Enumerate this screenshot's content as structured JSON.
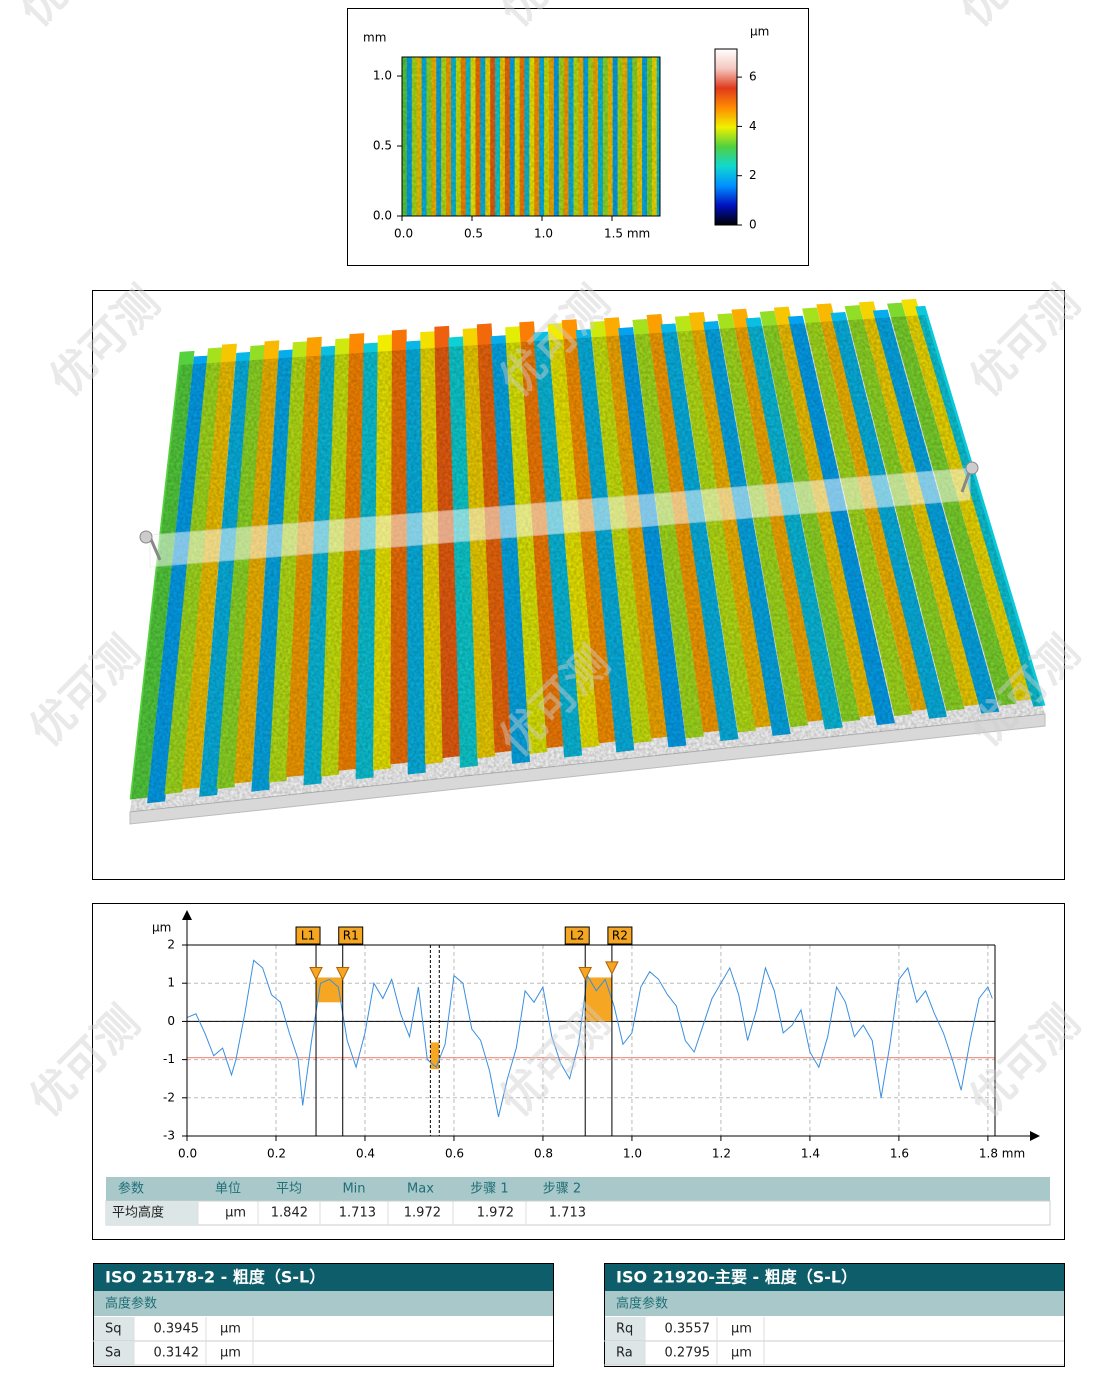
{
  "watermark": "优可测",
  "chart_data": [
    {
      "type": "heatmap",
      "y_label": "mm",
      "colorbar_label": "μm",
      "x": [
        0.0175,
        0.0525,
        0.0875,
        0.1225,
        0.1575,
        0.1925,
        0.2275,
        0.2625,
        0.2975,
        0.3325,
        0.3675,
        0.4025,
        0.4375,
        0.4725,
        0.5075,
        0.5425,
        0.5775,
        0.6125,
        0.6475,
        0.6825,
        0.7175,
        0.7525,
        0.7875,
        0.8225,
        0.8575,
        0.8925,
        0.9275,
        0.9625,
        0.9975,
        1.0325,
        1.0675,
        1.1025,
        1.1375,
        1.1725,
        1.2075,
        1.2425,
        1.2775,
        1.3125,
        1.3475,
        1.3825,
        1.4175,
        1.4525,
        1.4875,
        1.5225,
        1.5575,
        1.5925,
        1.6275,
        1.6625,
        1.6975,
        1.7325,
        1.7675,
        1.8025,
        1.8375
      ],
      "values": [
        3.2,
        1.8,
        3.6,
        4.3,
        2.0,
        3.5,
        4.4,
        1.9,
        3.7,
        4.6,
        2.1,
        3.8,
        4.8,
        2.2,
        4.0,
        5.0,
        2.0,
        4.1,
        5.2,
        2.3,
        4.2,
        5.1,
        1.9,
        3.9,
        4.9,
        2.1,
        4.0,
        4.7,
        2.0,
        3.8,
        4.5,
        1.8,
        3.6,
        4.6,
        2.0,
        3.7,
        4.4,
        1.9,
        3.6,
        4.5,
        2.1,
        3.5,
        4.3,
        1.8,
        3.6,
        4.4,
        2.0,
        3.5,
        4.2,
        1.9,
        3.4,
        4.1,
        2.2
      ],
      "xlim": [
        0,
        1.843
      ],
      "ylim": [
        0,
        1.136
      ],
      "zlim": [
        0,
        7.14
      ],
      "xticks": [
        {
          "value": 0,
          "label": "0.0"
        },
        0.5,
        {
          "value": 1,
          "label": "1.0"
        },
        {
          "value": 1.5,
          "label": "1.5 mm"
        }
      ],
      "yticks": [
        {
          "value": 0,
          "label": "0.0"
        },
        0.5,
        {
          "value": 1,
          "label": "1.0"
        }
      ],
      "zticks": [
        0,
        2,
        4,
        6
      ],
      "colors": [
        "#000000",
        "#0010c0",
        "#0090ff",
        "#10d8d0",
        "#50d040",
        "#f0f000",
        "#ff8c00",
        "#e03a1c",
        "#f4c8c0",
        "#ffffff"
      ]
    },
    {
      "type": "line",
      "y_label": "μm",
      "color": "#3a8fe0",
      "x": [
        0,
        0.02,
        0.04,
        0.06,
        0.08,
        0.1,
        0.11,
        0.13,
        0.15,
        0.17,
        0.19,
        0.21,
        0.23,
        0.25,
        0.26,
        0.28,
        0.3,
        0.32,
        0.34,
        0.36,
        0.38,
        0.4,
        0.42,
        0.44,
        0.46,
        0.48,
        0.5,
        0.52,
        0.54,
        0.56,
        0.58,
        0.6,
        0.62,
        0.64,
        0.66,
        0.68,
        0.7,
        0.72,
        0.74,
        0.76,
        0.78,
        0.8,
        0.82,
        0.84,
        0.86,
        0.88,
        0.9,
        0.92,
        0.94,
        0.96,
        0.98,
        1.0,
        1.02,
        1.04,
        1.06,
        1.08,
        1.1,
        1.12,
        1.14,
        1.16,
        1.18,
        1.2,
        1.22,
        1.24,
        1.26,
        1.28,
        1.3,
        1.32,
        1.34,
        1.36,
        1.38,
        1.4,
        1.42,
        1.44,
        1.46,
        1.48,
        1.5,
        1.52,
        1.54,
        1.56,
        1.58,
        1.6,
        1.62,
        1.64,
        1.66,
        1.68,
        1.7,
        1.72,
        1.74,
        1.76,
        1.78,
        1.8,
        1.81
      ],
      "values": [
        0.1,
        0.2,
        -0.3,
        -0.9,
        -0.7,
        -1.4,
        -1.0,
        0.2,
        1.6,
        1.4,
        0.7,
        0.5,
        -0.3,
        -1.0,
        -2.2,
        -0.5,
        1.0,
        1.1,
        0.9,
        -0.5,
        -1.2,
        -0.3,
        1.0,
        0.6,
        1.1,
        0.2,
        -0.4,
        0.9,
        -1.0,
        -1.2,
        -0.6,
        1.2,
        1.0,
        -0.2,
        -0.5,
        -1.3,
        -2.5,
        -1.5,
        -0.7,
        0.8,
        0.5,
        0.9,
        -0.4,
        -1.1,
        -1.5,
        -0.6,
        1.2,
        0.8,
        1.1,
        0.4,
        -0.6,
        -0.3,
        0.9,
        1.3,
        1.1,
        0.7,
        0.4,
        -0.5,
        -0.8,
        -0.1,
        0.6,
        1.0,
        1.4,
        0.7,
        -0.5,
        0.3,
        1.4,
        0.8,
        -0.3,
        -0.1,
        0.3,
        -0.8,
        -1.2,
        -0.4,
        0.9,
        0.5,
        -0.4,
        -0.1,
        -0.5,
        -2.0,
        -0.6,
        1.1,
        1.4,
        0.5,
        0.8,
        0.2,
        -0.3,
        -1.0,
        -1.8,
        -0.5,
        0.6,
        0.9,
        0.6
      ],
      "xlim": [
        0,
        1.816
      ],
      "ylim": [
        -3,
        2
      ],
      "xticks": [
        {
          "value": 0,
          "label": "0.0"
        },
        0.2,
        0.4,
        0.6,
        0.8,
        {
          "value": 1,
          "label": "1.0"
        },
        1.2,
        1.4,
        1.6,
        {
          "value": 1.8,
          "label": "1.8 mm"
        }
      ],
      "yticks": [
        -3,
        -2,
        -1,
        0,
        1,
        2
      ],
      "grid": true,
      "reference_line": {
        "value": -0.95,
        "color": "#f08a7a"
      },
      "markers": [
        {
          "label": "L1",
          "x": 0.29,
          "y": 1.2
        },
        {
          "label": "R1",
          "x": 0.35,
          "y": 1.2
        },
        {
          "label": "L2",
          "x": 0.895,
          "y": 1.2
        },
        {
          "label": "R2",
          "x": 0.955,
          "y": 1.35
        }
      ],
      "regions": [
        {
          "from": 0.29,
          "to": 0.35,
          "bottom": 0.5,
          "top": 1.15,
          "dashed": false
        },
        {
          "from": 0.547,
          "to": 0.567,
          "bottom": -1.25,
          "top": -0.55,
          "dashed": true
        },
        {
          "from": 0.895,
          "to": 0.955,
          "bottom": 0.0,
          "top": 1.15,
          "dashed": false
        }
      ],
      "region_color": "#f5a623"
    }
  ],
  "parameter_table": {
    "header": [
      "参数",
      "单位",
      "平均",
      "Min",
      "Max",
      "步骤 1",
      "步骤 2"
    ],
    "rows": [
      [
        "平均高度",
        "μm",
        "1.842",
        "1.713",
        "1.972",
        "1.972",
        "1.713"
      ]
    ]
  },
  "iso_tables": [
    {
      "title": "ISO 25178-2 - 粗度（S-L）",
      "section": "高度参数",
      "rows": [
        [
          "Sq",
          "0.3945",
          "μm"
        ],
        [
          "Sa",
          "0.3142",
          "μm"
        ]
      ]
    },
    {
      "title": "ISO 21920-主要 - 粗度（S-L）",
      "section": "高度参数",
      "rows": [
        [
          "Rq",
          "0.3557",
          "μm"
        ],
        [
          "Ra",
          "0.2795",
          "μm"
        ]
      ]
    }
  ]
}
